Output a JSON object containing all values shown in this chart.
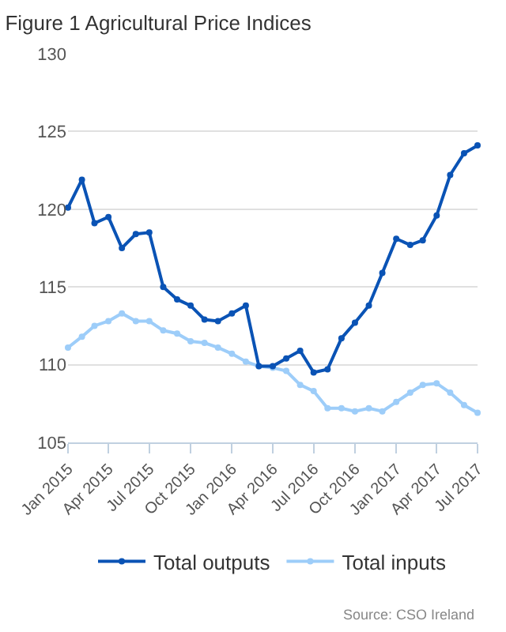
{
  "chart_data": {
    "type": "line",
    "title": "Figure 1 Agricultural Price Indices",
    "x": [
      "2015-01",
      "2015-02",
      "2015-03",
      "2015-04",
      "2015-05",
      "2015-06",
      "2015-07",
      "2015-08",
      "2015-09",
      "2015-10",
      "2015-11",
      "2015-12",
      "2016-01",
      "2016-02",
      "2016-03",
      "2016-04",
      "2016-05",
      "2016-06",
      "2016-07",
      "2016-08",
      "2016-09",
      "2016-10",
      "2016-11",
      "2016-12",
      "2017-01",
      "2017-02",
      "2017-03",
      "2017-04",
      "2017-05",
      "2017-06",
      "2017-07"
    ],
    "series": [
      {
        "name": "Total outputs",
        "color": "#0a53b5",
        "values": [
          120.1,
          121.9,
          119.1,
          119.5,
          117.5,
          118.4,
          118.5,
          115.0,
          114.2,
          113.8,
          112.9,
          112.8,
          113.3,
          113.8,
          109.9,
          109.9,
          110.4,
          110.9,
          109.5,
          109.7,
          111.7,
          112.7,
          113.8,
          115.9,
          118.1,
          117.7,
          118.0,
          119.6,
          122.2,
          123.6,
          124.1
        ]
      },
      {
        "name": "Total inputs",
        "color": "#9dcdf9",
        "values": [
          111.1,
          111.8,
          112.5,
          112.8,
          113.3,
          112.8,
          112.8,
          112.2,
          112.0,
          111.5,
          111.4,
          111.1,
          110.7,
          110.2,
          109.9,
          109.8,
          109.6,
          108.7,
          108.3,
          107.2,
          107.2,
          107.0,
          107.2,
          107.0,
          107.6,
          108.2,
          108.7,
          108.8,
          108.2,
          107.4,
          106.9
        ]
      }
    ],
    "xlim": [
      "2015-01",
      "2017-07"
    ],
    "xticks": [
      {
        "value": "2015-01",
        "label": "Jan 2015"
      },
      {
        "value": "2015-04",
        "label": "Apr 2015"
      },
      {
        "value": "2015-07",
        "label": "Jul 2015"
      },
      {
        "value": "2015-10",
        "label": "Oct 2015"
      },
      {
        "value": "2016-01",
        "label": "Jan 2016"
      },
      {
        "value": "2016-04",
        "label": "Apr 2016"
      },
      {
        "value": "2016-07",
        "label": "Jul 2016"
      },
      {
        "value": "2016-10",
        "label": "Oct 2016"
      },
      {
        "value": "2017-01",
        "label": "Jan 2017"
      },
      {
        "value": "2017-04",
        "label": "Apr 2017"
      },
      {
        "value": "2017-07",
        "label": "Jul 2017"
      }
    ],
    "ylim": [
      105,
      130
    ],
    "yticks": [
      105,
      110,
      115,
      120,
      125,
      130
    ],
    "grid": "y",
    "legend": "bottom",
    "marker": "circle",
    "line_style": "solid",
    "annotations": [
      "Source: CSO Ireland"
    ]
  }
}
